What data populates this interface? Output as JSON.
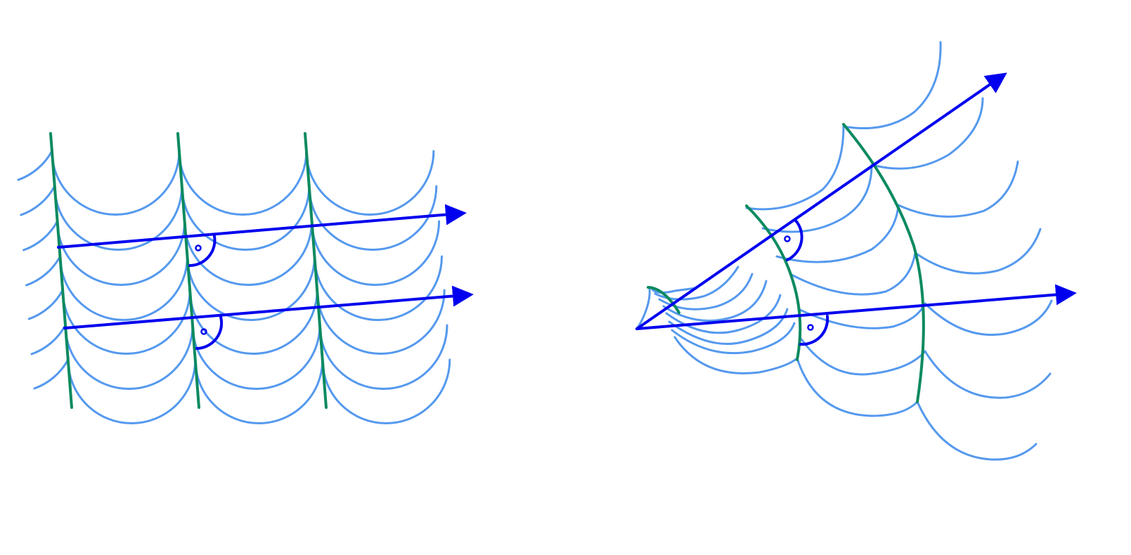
{
  "colors": {
    "wavelet": "#5599ee",
    "wavefront": "#0b8a60",
    "ray": "#0000ee",
    "background": "#ffffff"
  },
  "panels": [
    {
      "id": "plane-wave",
      "kind": "plane wavefronts with parallel rays",
      "rays": 2,
      "wavefronts": 3
    },
    {
      "id": "curved-wave",
      "kind": "curved wavefronts with diverging rays",
      "rays": 2,
      "wavefronts": 3
    }
  ],
  "right_angle_markers": 4
}
